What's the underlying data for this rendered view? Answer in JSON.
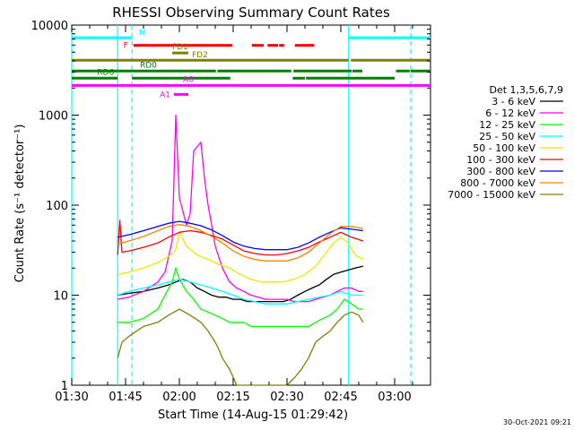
{
  "chart_data": {
    "type": "line",
    "title": "RHESSI Observing Summary Count Rates",
    "xlabel": "Start Time (14-Aug-15 01:29:42)",
    "ylabel": "Count Rate (s⁻¹ detector⁻¹)",
    "yscale": "log",
    "ylim": [
      1,
      10000
    ],
    "xlim_minutes": [
      0,
      100
    ],
    "x_ticks": [
      {
        "t": 0,
        "label": "01:30"
      },
      {
        "t": 15,
        "label": "01:45"
      },
      {
        "t": 30,
        "label": "02:00"
      },
      {
        "t": 45,
        "label": "02:15"
      },
      {
        "t": 60,
        "label": "02:30"
      },
      {
        "t": 75,
        "label": "02:45"
      },
      {
        "t": 90,
        "label": "03:00"
      }
    ],
    "y_ticks": [
      {
        "v": 1,
        "label": "1"
      },
      {
        "v": 10,
        "label": "10"
      },
      {
        "v": 100,
        "label": "100"
      },
      {
        "v": 1000,
        "label": "1000"
      },
      {
        "v": 10000,
        "label": "10000"
      }
    ],
    "legend_title": "Det 1,3,5,6,7,9",
    "legend_position": "right",
    "timestamp": "30-Oct-2021 09:21",
    "series": [
      {
        "name": "3 - 6 keV",
        "color": "#000000",
        "t": [
          12.8,
          16,
          20,
          24,
          27,
          29,
          31,
          33,
          35,
          37,
          39,
          41,
          43,
          45,
          47,
          49,
          51,
          53,
          55,
          57,
          59,
          61,
          63,
          65,
          67,
          69,
          71,
          73,
          75,
          77,
          79,
          81.2
        ],
        "v": [
          10,
          10.5,
          11,
          12,
          13,
          14,
          15,
          14,
          12,
          11,
          10,
          9.5,
          9.5,
          9,
          9,
          8.5,
          8.5,
          8.5,
          8.5,
          8.5,
          8.5,
          9,
          10,
          11,
          12,
          13,
          15,
          17,
          18,
          19,
          20,
          21
        ]
      },
      {
        "name": "6 - 12 keV",
        "color": "#ff00ff",
        "t": [
          12.8,
          16,
          20,
          24,
          26,
          28,
          29,
          30,
          32,
          33,
          34,
          36,
          37,
          38,
          39,
          40,
          42,
          44,
          46,
          48,
          50,
          52,
          54,
          56,
          58,
          60,
          62,
          64,
          66,
          68,
          70,
          72,
          74,
          76,
          78,
          80,
          81.2
        ],
        "v": [
          9,
          9.5,
          11,
          14,
          18,
          40,
          1000,
          120,
          60,
          80,
          400,
          500,
          200,
          100,
          60,
          35,
          20,
          14,
          12,
          11,
          10,
          9.5,
          9,
          9,
          9,
          9,
          8.5,
          8.5,
          8.5,
          9,
          9.5,
          10,
          11,
          12,
          12,
          11,
          11
        ]
      },
      {
        "name": "12 - 25 keV",
        "color": "#00ff00",
        "t": [
          12.8,
          16,
          20,
          24,
          26,
          28,
          29,
          30,
          32,
          34,
          36,
          38,
          40,
          42,
          44,
          46,
          48,
          50,
          52,
          54,
          56,
          58,
          60,
          62,
          64,
          66,
          68,
          70,
          72,
          74,
          76,
          78,
          80,
          81.2
        ],
        "v": [
          5,
          5,
          5.5,
          7,
          10,
          14,
          20,
          15,
          11,
          9,
          7,
          6.5,
          6,
          5.5,
          5,
          5,
          5,
          4.5,
          4.5,
          4.5,
          4.5,
          4.5,
          4.5,
          4.5,
          4.5,
          4.5,
          5,
          5.5,
          6,
          7,
          9,
          8,
          7,
          7
        ]
      },
      {
        "name": "25 - 50 keV",
        "color": "#00ffff",
        "t": [
          12.8,
          16,
          20,
          24,
          27,
          30,
          33,
          36,
          39,
          42,
          45,
          48,
          51,
          54,
          57,
          60,
          63,
          66,
          69,
          72,
          75,
          78,
          81.2
        ],
        "v": [
          10,
          11,
          12,
          13,
          14,
          15,
          14,
          13,
          12,
          11,
          10,
          9,
          8.5,
          8,
          8,
          8,
          8.5,
          9,
          9.5,
          10,
          11,
          10,
          10
        ]
      },
      {
        "name": "50 - 100 keV",
        "color": "#e8e800",
        "t": [
          12.8,
          16,
          20,
          24,
          27,
          29,
          30,
          32,
          35,
          38,
          41,
          44,
          47,
          50,
          53,
          56,
          59,
          62,
          65,
          68,
          71,
          73,
          75,
          77,
          79,
          81.2
        ],
        "v": [
          17,
          18,
          20,
          23,
          27,
          32,
          50,
          35,
          28,
          25,
          22,
          20,
          17,
          15,
          14,
          14,
          14,
          15,
          17,
          21,
          30,
          38,
          44,
          38,
          28,
          25
        ]
      },
      {
        "name": "100 - 300 keV",
        "color": "#ff0000",
        "t": [
          12.8,
          13.4,
          14,
          16,
          20,
          24,
          27,
          30,
          33,
          36,
          39,
          42,
          45,
          48,
          51,
          54,
          57,
          60,
          63,
          66,
          69,
          72,
          75,
          78,
          81.2
        ],
        "v": [
          28,
          68,
          30,
          31,
          34,
          38,
          44,
          50,
          52,
          50,
          46,
          42,
          36,
          31,
          29,
          28,
          28,
          29,
          31,
          34,
          39,
          44,
          50,
          44,
          40
        ]
      },
      {
        "name": "300 - 800 keV",
        "color": "#0000ff",
        "t": [
          12.8,
          16,
          20,
          24,
          27,
          30,
          33,
          36,
          39,
          42,
          45,
          48,
          51,
          54,
          57,
          60,
          63,
          66,
          69,
          72,
          75,
          78,
          81.2
        ],
        "v": [
          44,
          47,
          52,
          58,
          63,
          66,
          63,
          59,
          53,
          46,
          39,
          35,
          33,
          32,
          32,
          32,
          34,
          38,
          44,
          50,
          56,
          54,
          52
        ]
      },
      {
        "name": "800 - 7000 keV",
        "color": "#ff8000",
        "t": [
          12.8,
          16,
          20,
          24,
          27,
          30,
          33,
          36,
          39,
          42,
          45,
          48,
          51,
          54,
          57,
          60,
          63,
          66,
          69,
          72,
          75,
          78,
          81.2
        ],
        "v": [
          37,
          40,
          45,
          52,
          58,
          61,
          58,
          52,
          45,
          38,
          31,
          27,
          25,
          24,
          24,
          24,
          26,
          30,
          38,
          48,
          58,
          58,
          55
        ]
      },
      {
        "name": "7000 - 15000 keV",
        "color": "#808000",
        "t": [
          12.8,
          14,
          16,
          20,
          24,
          27,
          30,
          33,
          36,
          38,
          40,
          41,
          42,
          44,
          46,
          48,
          50,
          52,
          54,
          56,
          58,
          60,
          62,
          64,
          66,
          68,
          70,
          72,
          74,
          76,
          78,
          80,
          81.2
        ],
        "v": [
          2,
          3,
          3.5,
          4.5,
          5,
          6,
          7,
          6,
          5,
          4,
          3,
          2.5,
          2,
          1.5,
          1,
          1,
          1,
          1,
          1,
          1,
          1,
          1,
          1.2,
          1.5,
          2,
          3,
          3.5,
          4,
          5,
          6,
          6.5,
          6,
          5
        ]
      }
    ],
    "vertical_lines": [
      {
        "t": 0,
        "style": "solid",
        "color": "#00ffff"
      },
      {
        "t": 12.8,
        "style": "solid",
        "color": "#00ffff"
      },
      {
        "t": 16.8,
        "style": "dashed",
        "color": "#00ffff"
      },
      {
        "t": 77.2,
        "style": "solid",
        "color": "#00ffff"
      },
      {
        "t": 94.5,
        "style": "dashed",
        "color": "#00ffff"
      }
    ],
    "flag_bars": [
      {
        "label": "N",
        "color": "#00ffff",
        "level_exp": 3.86,
        "segments": [
          [
            0,
            16.8
          ],
          [
            77.2,
            100
          ]
        ]
      },
      {
        "label": "F",
        "color": "#ff0000",
        "level_exp": 3.775,
        "segments": [
          [
            17.2,
            44.8
          ],
          [
            50.2,
            53.5
          ],
          [
            54.6,
            57.5
          ],
          [
            57.8,
            59.2
          ],
          [
            62.2,
            67.6
          ]
        ]
      },
      {
        "label": "FD1",
        "color": "#808000",
        "level_exp": 3.69,
        "segments": [
          [
            28,
            32.5
          ]
        ]
      },
      {
        "label": "FD2",
        "color": "#808000",
        "level_exp": 3.61,
        "segments": [
          [
            0,
            77.2
          ],
          [
            77.8,
            100
          ]
        ]
      },
      {
        "label": "RD0",
        "color": "#008000",
        "level_exp": 3.49,
        "segments": [
          [
            0,
            40.2
          ],
          [
            40.6,
            60.8
          ],
          [
            60.8,
            61.2
          ],
          [
            61.8,
            78
          ],
          [
            78.2,
            81
          ],
          [
            90.4,
            94.2
          ],
          [
            94.4,
            100
          ]
        ]
      },
      {
        "label": "RD6",
        "color": "#008000",
        "level_exp": 3.41,
        "segments": [
          [
            0,
            12.8
          ],
          [
            16.8,
            43.8
          ],
          [
            43.8,
            44.2
          ],
          [
            61.6,
            65
          ],
          [
            65.3,
            70
          ],
          [
            70,
            90
          ]
        ]
      },
      {
        "label": "A0",
        "color": "#ff00ff",
        "level_exp": 3.33,
        "segments": [
          [
            0,
            100
          ]
        ]
      },
      {
        "label": "A1",
        "color": "#ff00ff",
        "level_exp": 3.23,
        "segments": [
          [
            28.5,
            32.5
          ]
        ]
      }
    ]
  }
}
